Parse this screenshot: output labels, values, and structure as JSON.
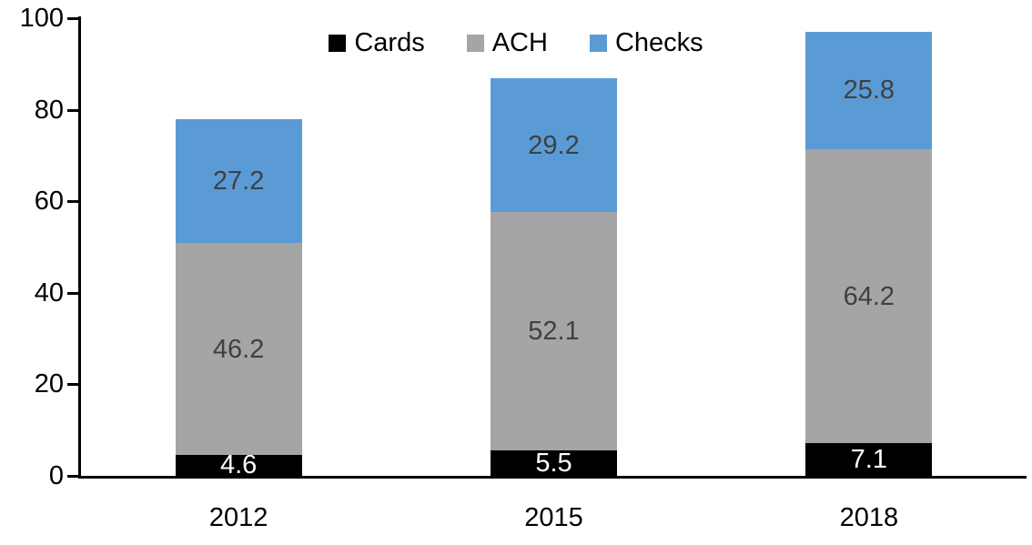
{
  "chart_data": {
    "type": "bar",
    "stacked": true,
    "title": "",
    "xlabel": "",
    "ylabel": "",
    "categories": [
      "2012",
      "2015",
      "2018"
    ],
    "series": [
      {
        "name": "Cards",
        "color": "#000000",
        "label_color": "#ffffff",
        "values": [
          4.6,
          5.5,
          7.1
        ]
      },
      {
        "name": "ACH",
        "color": "#a5a5a5",
        "label_color": "#404040",
        "values": [
          46.2,
          52.1,
          64.2
        ]
      },
      {
        "name": "Checks",
        "color": "#5b9bd5",
        "label_color": "#404040",
        "values": [
          27.2,
          29.2,
          25.8
        ]
      }
    ],
    "ylim": [
      0,
      100
    ],
    "yticks": [
      0,
      20,
      40,
      60,
      80,
      100
    ],
    "legend_position": "top-center",
    "grid": false,
    "axis_color": "#000000",
    "tick_label_color": "#000000",
    "data_labels_shown": true
  }
}
